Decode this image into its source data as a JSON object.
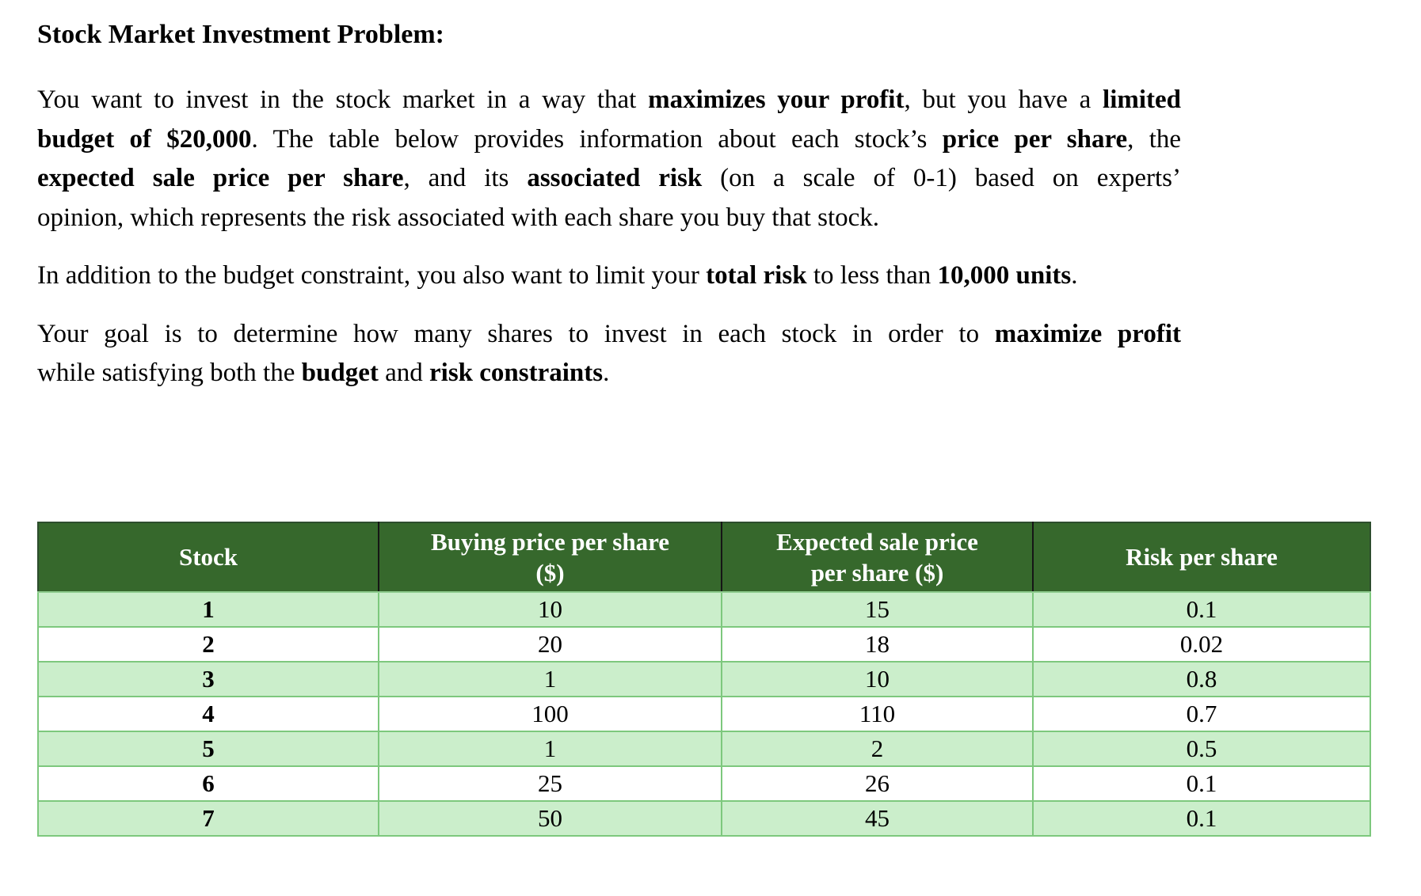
{
  "document": {
    "title": "Stock Market Investment Problem:",
    "paragraphs": [
      {
        "lines": [
          {
            "justified": true,
            "runs": [
              {
                "text": "You want to invest in the stock market in a way that ",
                "bold": false
              },
              {
                "text": "maximizes your profit",
                "bold": true
              },
              {
                "text": ", but you have a ",
                "bold": false
              },
              {
                "text": "limited",
                "bold": true
              }
            ]
          },
          {
            "justified": true,
            "runs": [
              {
                "text": "budget of $20,000",
                "bold": true
              },
              {
                "text": ". The table below provides information about each stock’s ",
                "bold": false
              },
              {
                "text": "price per share",
                "bold": true
              },
              {
                "text": ", the",
                "bold": false
              }
            ]
          },
          {
            "justified": true,
            "runs": [
              {
                "text": "expected sale price per share",
                "bold": true
              },
              {
                "text": ", and its ",
                "bold": false
              },
              {
                "text": "associated risk",
                "bold": true
              },
              {
                "text": " (on a scale of 0-1) based on experts’",
                "bold": false
              }
            ]
          },
          {
            "justified": false,
            "runs": [
              {
                "text": "opinion, which represents the risk associated with each share you buy that stock.",
                "bold": false
              }
            ]
          }
        ]
      },
      {
        "lines": [
          {
            "justified": false,
            "runs": [
              {
                "text": "In addition to the budget constraint, you also want to limit your ",
                "bold": false
              },
              {
                "text": "total risk",
                "bold": true
              },
              {
                "text": " to less than ",
                "bold": false
              },
              {
                "text": "10,000 units",
                "bold": true
              },
              {
                "text": ".",
                "bold": false
              }
            ]
          }
        ]
      },
      {
        "lines": [
          {
            "justified": true,
            "runs": [
              {
                "text": "Your goal is to determine how many shares to invest in each stock in order to ",
                "bold": false
              },
              {
                "text": "maximize profit",
                "bold": true
              }
            ]
          },
          {
            "justified": false,
            "runs": [
              {
                "text": "while satisfying both the ",
                "bold": false
              },
              {
                "text": "budget",
                "bold": true
              },
              {
                "text": " and ",
                "bold": false
              },
              {
                "text": "risk constraints",
                "bold": true
              },
              {
                "text": ".",
                "bold": false
              }
            ]
          }
        ]
      }
    ]
  },
  "table": {
    "columns": [
      {
        "id": "stock",
        "lines": [
          "Stock"
        ]
      },
      {
        "id": "buying-price-per-share",
        "lines": [
          "Buying price per share",
          "($)"
        ]
      },
      {
        "id": "expected-sale-price-per-share",
        "lines": [
          "Expected sale price",
          "per share ($)"
        ]
      },
      {
        "id": "risk-per-share",
        "lines": [
          "Risk per share"
        ]
      }
    ],
    "rows": [
      [
        "1",
        "10",
        "15",
        "0.1"
      ],
      [
        "2",
        "20",
        "18",
        "0.02"
      ],
      [
        "3",
        "1",
        "10",
        "0.8"
      ],
      [
        "4",
        "100",
        "110",
        "0.7"
      ],
      [
        "5",
        "1",
        "2",
        "0.5"
      ],
      [
        "6",
        "25",
        "26",
        "0.1"
      ],
      [
        "7",
        "50",
        "45",
        "0.1"
      ]
    ]
  },
  "colors": {
    "header_bg": "#36682c",
    "header_text": "#ffffff",
    "row_alt_bg": "#cbeecb",
    "row_bg": "#ffffff",
    "body_border": "#7dc87d",
    "header_divider": "#161616",
    "text": "#000000"
  }
}
